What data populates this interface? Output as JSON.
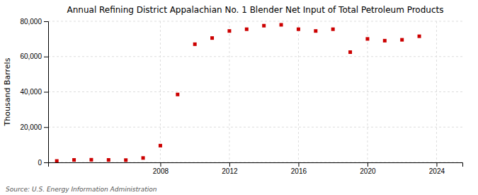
{
  "chart_data": {
    "type": "scatter",
    "title": "Annual Refining District Appalachian No. 1 Blender Net Input of Total Petroleum Products",
    "y_label": "Thousand Barrels",
    "annotations": [
      "Source: U.S. Energy Information Administration"
    ],
    "x": [
      2002,
      2003,
      2004,
      2005,
      2006,
      2007,
      2008,
      2009,
      2010,
      2011,
      2012,
      2013,
      2014,
      2015,
      2016,
      2017,
      2018,
      2019,
      2020,
      2021,
      2022,
      2023,
      2024
    ],
    "values": [
      800,
      1400,
      1500,
      1400,
      1300,
      2500,
      9500,
      38500,
      67000,
      70500,
      74500,
      75500,
      77500,
      78000,
      75500,
      74500,
      75500,
      62500,
      70000,
      69000,
      69500,
      71500,
      null
    ],
    "color": "#cc0000",
    "marker": "square",
    "xlim": [
      2001.5,
      2025.5
    ],
    "xticks": [
      2008,
      2012,
      2016,
      2020,
      2024
    ],
    "ylim": [
      0,
      80000
    ],
    "yticks": [
      0,
      {
        "value": 20000,
        "label": "20,000"
      },
      {
        "value": 40000,
        "label": "40,000"
      },
      {
        "value": 60000,
        "label": "60,000"
      },
      {
        "value": 80000,
        "label": "80,000"
      }
    ],
    "grid": true
  }
}
